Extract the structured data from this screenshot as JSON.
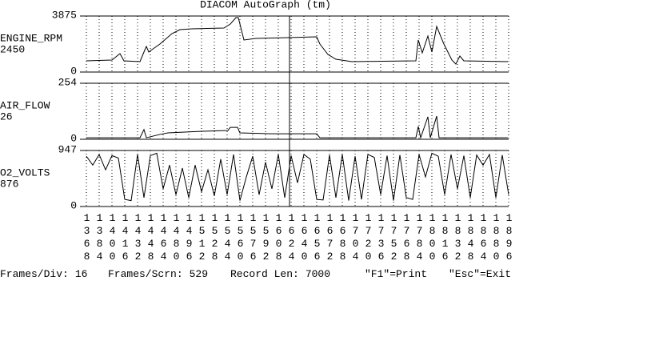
{
  "chart_data": {
    "type": "line",
    "title": "DIACOM AutoGraph (tm)",
    "xlim": [
      1368,
      1896
    ],
    "xticks": [
      1368,
      1384,
      1400,
      1416,
      1432,
      1448,
      1464,
      1480,
      1496,
      1512,
      1528,
      1544,
      1560,
      1576,
      1592,
      1608,
      1624,
      1640,
      1656,
      1672,
      1688,
      1704,
      1720,
      1736,
      1752,
      1768,
      1784,
      1800,
      1816,
      1832,
      1848,
      1864,
      1880,
      1896
    ],
    "cursor_x": 1622,
    "grid": true,
    "series": [
      {
        "name": "ENGINE_RPM",
        "color": "#000000",
        "cursor_value": 2450,
        "ylim": [
          0,
          3875
        ],
        "yticks": [
          0,
          3875
        ],
        "x": [
          1368,
          1400,
          1410,
          1415,
          1435,
          1440,
          1443,
          1446,
          1450,
          1460,
          1475,
          1485,
          1500,
          1540,
          1548,
          1555,
          1558,
          1565,
          1580,
          1620,
          1656,
          1660,
          1670,
          1680,
          1700,
          1780,
          1783,
          1788,
          1795,
          1800,
          1806,
          1815,
          1825,
          1830,
          1835,
          1840,
          1895
        ],
        "values": [
          775,
          830,
          1273,
          775,
          720,
          1384,
          1771,
          1384,
          1550,
          1937,
          2657,
          2934,
          2989,
          3045,
          3321,
          3764,
          3764,
          2214,
          2325,
          2380,
          2435,
          1937,
          1218,
          886,
          720,
          775,
          2214,
          1329,
          2491,
          1384,
          3155,
          1937,
          830,
          554,
          1107,
          775,
          720
        ]
      },
      {
        "name": "AIR_FLOW",
        "color": "#000000",
        "cursor_value": 26,
        "ylim": [
          0,
          254
        ],
        "yticks": [
          0,
          254
        ],
        "x": [
          1368,
          1435,
          1440,
          1443,
          1460,
          1470,
          1510,
          1545,
          1548,
          1557,
          1560,
          1600,
          1656,
          1660,
          1780,
          1783,
          1786,
          1795,
          1798,
          1806,
          1809,
          1895
        ],
        "values": [
          7,
          7,
          44,
          7,
          22,
          29,
          36,
          40,
          54,
          54,
          29,
          25,
          25,
          7,
          7,
          58,
          7,
          102,
          7,
          105,
          7,
          7
        ]
      },
      {
        "name": "O2_VOLTS",
        "color": "#000000",
        "cursor_value": 876,
        "ylim": [
          0,
          947
        ],
        "yticks": [
          0,
          947
        ],
        "x": [
          1368,
          1376,
          1384,
          1392,
          1400,
          1408,
          1416,
          1424,
          1432,
          1440,
          1448,
          1456,
          1464,
          1472,
          1480,
          1488,
          1496,
          1504,
          1512,
          1520,
          1528,
          1536,
          1544,
          1552,
          1560,
          1568,
          1576,
          1584,
          1592,
          1600,
          1608,
          1616,
          1624,
          1632,
          1640,
          1648,
          1656,
          1664,
          1672,
          1680,
          1688,
          1696,
          1704,
          1712,
          1720,
          1728,
          1736,
          1744,
          1752,
          1760,
          1768,
          1776,
          1784,
          1792,
          1800,
          1808,
          1816,
          1824,
          1832,
          1840,
          1848,
          1856,
          1864,
          1872,
          1880,
          1888,
          1896
        ],
        "values": [
          850,
          700,
          880,
          620,
          860,
          820,
          120,
          100,
          880,
          150,
          860,
          900,
          300,
          700,
          200,
          650,
          150,
          700,
          250,
          620,
          180,
          800,
          200,
          880,
          100,
          500,
          850,
          200,
          750,
          300,
          880,
          150,
          860,
          400,
          880,
          800,
          120,
          110,
          870,
          150,
          880,
          100,
          850,
          120,
          880,
          830,
          200,
          860,
          100,
          870,
          150,
          120,
          880,
          500,
          900,
          850,
          200,
          880,
          300,
          860,
          150,
          870,
          700,
          880,
          150,
          870,
          200
        ]
      }
    ],
    "footer": [
      {
        "label": "Frames/Div:",
        "value": 16
      },
      {
        "label": "Frames/Scrn:",
        "value": 529
      },
      {
        "label": "Record Len:",
        "value": 7000
      },
      {
        "label": "\"F1\"=Print"
      },
      {
        "label": "\"Esc\"=Exit"
      }
    ]
  }
}
